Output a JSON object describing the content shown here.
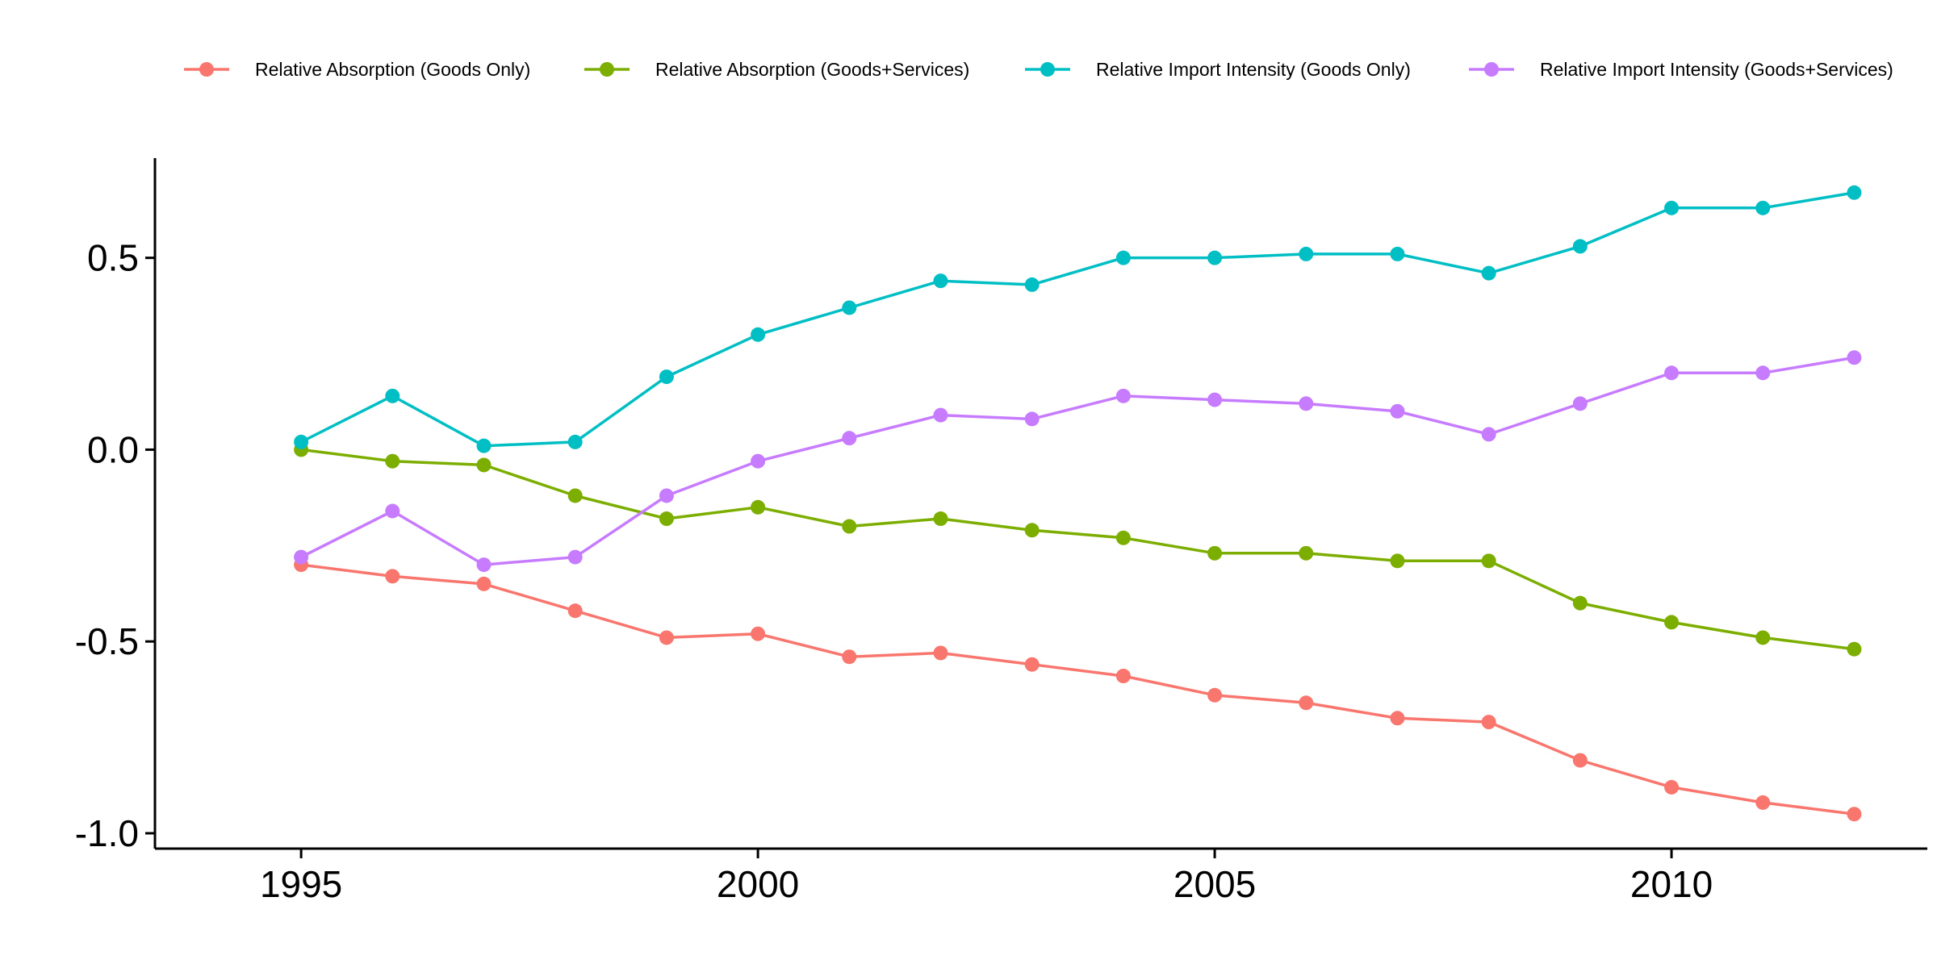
{
  "chart_data": {
    "type": "line",
    "title": "",
    "xlabel": "",
    "ylabel": "",
    "x": [
      1995,
      1996,
      1997,
      1998,
      1999,
      2000,
      2001,
      2002,
      2003,
      2004,
      2005,
      2006,
      2007,
      2008,
      2009,
      2010,
      2011,
      2012
    ],
    "xlim": [
      1993.4,
      2012.8
    ],
    "ylim": [
      -1.04,
      0.76
    ],
    "x_ticks": [
      1995,
      2000,
      2005,
      2010
    ],
    "x_tick_labels": [
      "1995",
      "2000",
      "2005",
      "2010"
    ],
    "y_ticks": [
      0.5,
      0.0,
      -0.5,
      -1.0
    ],
    "y_tick_labels": [
      "0.5",
      "0.0",
      "-0.5",
      "-1.0"
    ],
    "grid": false,
    "legend_position": "top",
    "series": [
      {
        "name": "Relative Absorption (Goods Only)",
        "color": "#F8766D",
        "values": [
          -0.3,
          -0.33,
          -0.35,
          -0.42,
          -0.49,
          -0.48,
          -0.54,
          -0.53,
          -0.56,
          -0.59,
          -0.64,
          -0.66,
          -0.7,
          -0.71,
          -0.81,
          -0.88,
          -0.92,
          -0.95
        ]
      },
      {
        "name": "Relative Absorption (Goods+Services)",
        "color": "#7CAE00",
        "values": [
          0.0,
          -0.03,
          -0.04,
          -0.12,
          -0.18,
          -0.15,
          -0.2,
          -0.18,
          -0.21,
          -0.23,
          -0.27,
          -0.27,
          -0.29,
          -0.29,
          -0.4,
          -0.45,
          -0.49,
          -0.52
        ]
      },
      {
        "name": "Relative Import Intensity (Goods Only)",
        "color": "#00BFC4",
        "values": [
          0.02,
          0.14,
          0.01,
          0.02,
          0.19,
          0.3,
          0.37,
          0.44,
          0.43,
          0.5,
          0.5,
          0.51,
          0.51,
          0.46,
          0.53,
          0.63,
          0.63,
          0.67
        ]
      },
      {
        "name": "Relative Import Intensity (Goods+Services)",
        "color": "#C77CFF",
        "values": [
          -0.28,
          -0.16,
          -0.3,
          -0.28,
          -0.12,
          -0.03,
          0.03,
          0.09,
          0.08,
          0.14,
          0.13,
          0.12,
          0.1,
          0.04,
          0.12,
          0.2,
          0.2,
          0.24
        ]
      }
    ]
  }
}
